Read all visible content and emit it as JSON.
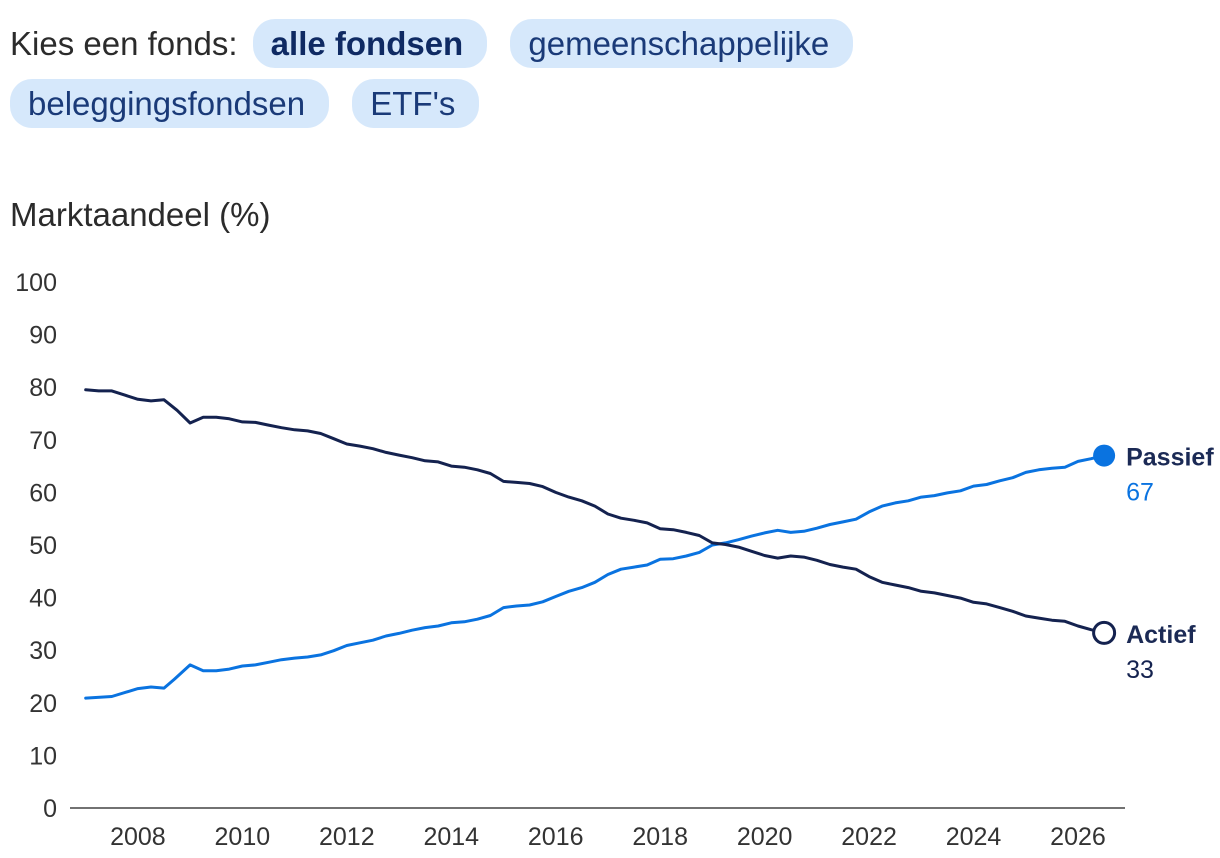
{
  "filters": {
    "label": "Kies een fonds:",
    "options": [
      "alle fondsen",
      "gemeenschappelijke beleggingsfondsen",
      "ETF's"
    ],
    "selected": "alle fondsen"
  },
  "colors": {
    "passive": "#0a73e0",
    "active": "#14224f",
    "pill_bg": "#d6e8fb"
  },
  "chart_data": {
    "type": "line",
    "ylabel": "Marktaandeel (%)",
    "ylim": [
      0,
      100
    ],
    "yticks": [
      0,
      10,
      20,
      30,
      40,
      50,
      60,
      70,
      80,
      90,
      100
    ],
    "xlim": [
      2006.7,
      2026.9
    ],
    "xticks": [
      "2008",
      "2010",
      "2012",
      "2014",
      "2016",
      "2018",
      "2020",
      "2022",
      "2024",
      "2026"
    ],
    "grid": false,
    "series": [
      {
        "name": "Passief",
        "color": "#0a73e0",
        "end_value": "67",
        "end_marker": "filled",
        "points": [
          [
            2007.0,
            20.9
          ],
          [
            2007.5,
            21.2
          ],
          [
            2008.0,
            22.7
          ],
          [
            2008.25,
            23.0
          ],
          [
            2008.5,
            22.8
          ],
          [
            2008.7,
            24.5
          ],
          [
            2009.0,
            27.2
          ],
          [
            2009.25,
            26.1
          ],
          [
            2009.5,
            26.1
          ],
          [
            2009.75,
            26.4
          ],
          [
            2010.0,
            27.0
          ],
          [
            2010.25,
            27.2
          ],
          [
            2010.5,
            27.7
          ],
          [
            2010.75,
            28.2
          ],
          [
            2011.0,
            28.5
          ],
          [
            2011.25,
            28.7
          ],
          [
            2011.5,
            29.1
          ],
          [
            2011.75,
            29.9
          ],
          [
            2012.0,
            30.9
          ],
          [
            2012.25,
            31.4
          ],
          [
            2012.5,
            31.9
          ],
          [
            2012.75,
            32.7
          ],
          [
            2013.0,
            33.2
          ],
          [
            2013.25,
            33.8
          ],
          [
            2013.5,
            34.3
          ],
          [
            2013.75,
            34.6
          ],
          [
            2014.0,
            35.2
          ],
          [
            2014.25,
            35.4
          ],
          [
            2014.5,
            35.9
          ],
          [
            2014.75,
            36.6
          ],
          [
            2015.0,
            38.1
          ],
          [
            2015.25,
            38.4
          ],
          [
            2015.5,
            38.6
          ],
          [
            2015.75,
            39.2
          ],
          [
            2016.0,
            40.2
          ],
          [
            2016.25,
            41.2
          ],
          [
            2016.5,
            41.9
          ],
          [
            2016.75,
            42.9
          ],
          [
            2017.0,
            44.4
          ],
          [
            2017.25,
            45.4
          ],
          [
            2017.5,
            45.8
          ],
          [
            2017.75,
            46.2
          ],
          [
            2018.0,
            47.3
          ],
          [
            2018.25,
            47.4
          ],
          [
            2018.5,
            47.9
          ],
          [
            2018.75,
            48.6
          ],
          [
            2019.0,
            50.0
          ],
          [
            2019.25,
            50.4
          ],
          [
            2019.5,
            51.0
          ],
          [
            2019.75,
            51.7
          ],
          [
            2020.0,
            52.3
          ],
          [
            2020.25,
            52.8
          ],
          [
            2020.5,
            52.4
          ],
          [
            2020.75,
            52.6
          ],
          [
            2021.0,
            53.2
          ],
          [
            2021.25,
            53.9
          ],
          [
            2021.5,
            54.4
          ],
          [
            2021.75,
            54.9
          ],
          [
            2022.0,
            56.3
          ],
          [
            2022.25,
            57.4
          ],
          [
            2022.5,
            58.0
          ],
          [
            2022.75,
            58.4
          ],
          [
            2023.0,
            59.1
          ],
          [
            2023.25,
            59.4
          ],
          [
            2023.5,
            59.9
          ],
          [
            2023.75,
            60.3
          ],
          [
            2024.0,
            61.2
          ],
          [
            2024.25,
            61.5
          ],
          [
            2024.5,
            62.2
          ],
          [
            2024.75,
            62.8
          ],
          [
            2025.0,
            63.8
          ],
          [
            2025.25,
            64.3
          ],
          [
            2025.5,
            64.6
          ],
          [
            2025.75,
            64.8
          ],
          [
            2026.0,
            65.9
          ],
          [
            2026.25,
            66.4
          ],
          [
            2026.5,
            67.0
          ]
        ]
      },
      {
        "name": "Actief",
        "color": "#14224f",
        "end_value": "33",
        "end_marker": "hollow",
        "points": [
          [
            2007.0,
            79.5
          ],
          [
            2007.25,
            79.3
          ],
          [
            2007.5,
            79.3
          ],
          [
            2007.75,
            78.5
          ],
          [
            2008.0,
            77.7
          ],
          [
            2008.25,
            77.4
          ],
          [
            2008.5,
            77.6
          ],
          [
            2008.75,
            75.6
          ],
          [
            2009.0,
            73.2
          ],
          [
            2009.25,
            74.3
          ],
          [
            2009.5,
            74.3
          ],
          [
            2009.75,
            74.0
          ],
          [
            2010.0,
            73.4
          ],
          [
            2010.25,
            73.3
          ],
          [
            2010.5,
            72.8
          ],
          [
            2010.75,
            72.3
          ],
          [
            2011.0,
            71.9
          ],
          [
            2011.25,
            71.7
          ],
          [
            2011.5,
            71.2
          ],
          [
            2011.75,
            70.2
          ],
          [
            2012.0,
            69.2
          ],
          [
            2012.25,
            68.8
          ],
          [
            2012.5,
            68.3
          ],
          [
            2012.75,
            67.6
          ],
          [
            2013.0,
            67.1
          ],
          [
            2013.25,
            66.6
          ],
          [
            2013.5,
            66.0
          ],
          [
            2013.75,
            65.8
          ],
          [
            2014.0,
            65.0
          ],
          [
            2014.25,
            64.8
          ],
          [
            2014.5,
            64.3
          ],
          [
            2014.75,
            63.6
          ],
          [
            2015.0,
            62.1
          ],
          [
            2015.25,
            61.9
          ],
          [
            2015.5,
            61.7
          ],
          [
            2015.75,
            61.1
          ],
          [
            2016.0,
            60.0
          ],
          [
            2016.25,
            59.1
          ],
          [
            2016.5,
            58.4
          ],
          [
            2016.75,
            57.4
          ],
          [
            2017.0,
            55.9
          ],
          [
            2017.25,
            55.1
          ],
          [
            2017.5,
            54.7
          ],
          [
            2017.75,
            54.2
          ],
          [
            2018.0,
            53.1
          ],
          [
            2018.25,
            52.9
          ],
          [
            2018.5,
            52.4
          ],
          [
            2018.75,
            51.8
          ],
          [
            2019.0,
            50.4
          ],
          [
            2019.25,
            50.1
          ],
          [
            2019.5,
            49.6
          ],
          [
            2019.75,
            48.8
          ],
          [
            2020.0,
            48.0
          ],
          [
            2020.25,
            47.5
          ],
          [
            2020.5,
            47.9
          ],
          [
            2020.75,
            47.7
          ],
          [
            2021.0,
            47.1
          ],
          [
            2021.25,
            46.3
          ],
          [
            2021.5,
            45.8
          ],
          [
            2021.75,
            45.4
          ],
          [
            2022.0,
            44.0
          ],
          [
            2022.25,
            42.9
          ],
          [
            2022.5,
            42.4
          ],
          [
            2022.75,
            41.9
          ],
          [
            2023.0,
            41.2
          ],
          [
            2023.25,
            40.9
          ],
          [
            2023.5,
            40.4
          ],
          [
            2023.75,
            39.9
          ],
          [
            2024.0,
            39.1
          ],
          [
            2024.25,
            38.8
          ],
          [
            2024.5,
            38.1
          ],
          [
            2024.75,
            37.4
          ],
          [
            2025.0,
            36.5
          ],
          [
            2025.25,
            36.1
          ],
          [
            2025.5,
            35.7
          ],
          [
            2025.75,
            35.5
          ],
          [
            2026.0,
            34.6
          ],
          [
            2026.25,
            33.9
          ],
          [
            2026.5,
            33.3
          ]
        ]
      }
    ]
  }
}
